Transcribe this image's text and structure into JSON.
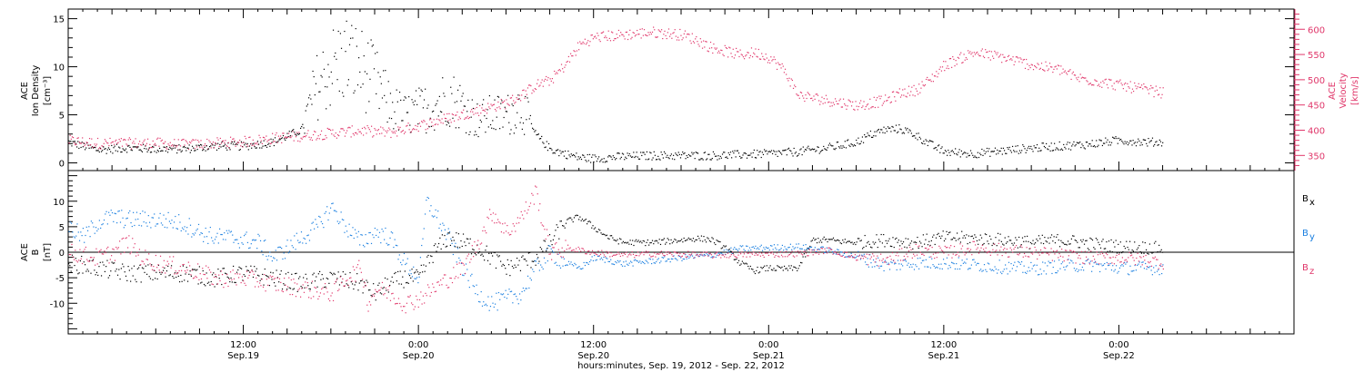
{
  "colors": {
    "black": "#000000",
    "blue": "#1a7fe0",
    "pink": "#e0366a"
  },
  "xaxis": {
    "title": "hours:minutes, Sep. 19, 2012 - Sep. 22, 2012",
    "range_hours": [
      -12,
      72
    ],
    "ticks": [
      {
        "hours": 0,
        "time": "12:00",
        "date": "Sep.19"
      },
      {
        "hours": 12,
        "time": "0:00",
        "date": "Sep.20"
      },
      {
        "hours": 24,
        "time": "12:00",
        "date": "Sep.20"
      },
      {
        "hours": 36,
        "time": "0:00",
        "date": "Sep.21"
      },
      {
        "hours": 48,
        "time": "12:00",
        "date": "Sep.21"
      },
      {
        "hours": 60,
        "time": "0:00",
        "date": "Sep.22"
      }
    ],
    "data_end_hours": 63
  },
  "chart_data": [
    {
      "type": "scatter",
      "panel": "top",
      "ylabel_left": [
        "ACE",
        "Ion Density",
        "[cm⁻³]"
      ],
      "ylabel_right": [
        "ACE",
        "Velocity",
        "[km/s]"
      ],
      "ylim_left": [
        -0.8,
        16
      ],
      "yticks_left": [
        0,
        5,
        10,
        15
      ],
      "ylim_right": [
        320,
        640
      ],
      "yticks_right": [
        350,
        400,
        450,
        500,
        550,
        600
      ],
      "series": [
        {
          "axis": "left",
          "color": "black",
          "points": [
            [
              -12,
              2.2
            ],
            [
              -10,
              1.4
            ],
            [
              -8,
              1.6
            ],
            [
              -6,
              1.5
            ],
            [
              -4,
              1.5
            ],
            [
              -2,
              1.8
            ],
            [
              0,
              1.8
            ],
            [
              2,
              2.2
            ],
            [
              4,
              3.5
            ],
            [
              5,
              8
            ],
            [
              6,
              10
            ],
            [
              7,
              11
            ],
            [
              8,
              10
            ],
            [
              9,
              8.5
            ],
            [
              10,
              6
            ],
            [
              11,
              5
            ],
            [
              12,
              5.5
            ],
            [
              13,
              6
            ],
            [
              14,
              7
            ],
            [
              15,
              6
            ],
            [
              16,
              4.5
            ],
            [
              17,
              5
            ],
            [
              18,
              5
            ],
            [
              19,
              6
            ],
            [
              20,
              3
            ],
            [
              21,
              1.5
            ],
            [
              22,
              1
            ],
            [
              23,
              0.6
            ],
            [
              24,
              0.5
            ],
            [
              26,
              0.7
            ],
            [
              28,
              0.8
            ],
            [
              30,
              0.8
            ],
            [
              32,
              0.8
            ],
            [
              34,
              0.9
            ],
            [
              36,
              1
            ],
            [
              38,
              1.2
            ],
            [
              40,
              1.6
            ],
            [
              42,
              2.2
            ],
            [
              43,
              3
            ],
            [
              44,
              3.5
            ],
            [
              45,
              3.6
            ],
            [
              46,
              3
            ],
            [
              47,
              2
            ],
            [
              48,
              1.2
            ],
            [
              50,
              1
            ],
            [
              52,
              1.3
            ],
            [
              54,
              1.6
            ],
            [
              56,
              1.8
            ],
            [
              58,
              2
            ],
            [
              60,
              2.4
            ],
            [
              62,
              2.2
            ],
            [
              63,
              2.2
            ]
          ]
        },
        {
          "axis": "right",
          "color": "pink",
          "points": [
            [
              -12,
              380
            ],
            [
              -10,
              375
            ],
            [
              -8,
              375
            ],
            [
              -6,
              375
            ],
            [
              -4,
              372
            ],
            [
              -2,
              375
            ],
            [
              0,
              378
            ],
            [
              2,
              385
            ],
            [
              4,
              390
            ],
            [
              6,
              395
            ],
            [
              8,
              400
            ],
            [
              10,
              396
            ],
            [
              12,
              410
            ],
            [
              14,
              425
            ],
            [
              16,
              440
            ],
            [
              18,
              455
            ],
            [
              19,
              470
            ],
            [
              20,
              490
            ],
            [
              21,
              500
            ],
            [
              22,
              530
            ],
            [
              23,
              570
            ],
            [
              24,
              585
            ],
            [
              26,
              590
            ],
            [
              28,
              595
            ],
            [
              30,
              590
            ],
            [
              31,
              580
            ],
            [
              32,
              565
            ],
            [
              34,
              550
            ],
            [
              35,
              555
            ],
            [
              36,
              545
            ],
            [
              37,
              520
            ],
            [
              38,
              470
            ],
            [
              40,
              460
            ],
            [
              42,
              450
            ],
            [
              43,
              455
            ],
            [
              44,
              460
            ],
            [
              45,
              475
            ],
            [
              46,
              480
            ],
            [
              47,
              500
            ],
            [
              48,
              530
            ],
            [
              50,
              555
            ],
            [
              52,
              545
            ],
            [
              54,
              530
            ],
            [
              56,
              520
            ],
            [
              57,
              505
            ],
            [
              58,
              500
            ],
            [
              60,
              490
            ],
            [
              62,
              480
            ],
            [
              63,
              475
            ]
          ]
        }
      ]
    },
    {
      "type": "scatter",
      "panel": "bottom",
      "ylabel_left": [
        "ACE",
        "B",
        "[nT]"
      ],
      "ylim": [
        -16,
        16
      ],
      "yticks": [
        -10,
        -5,
        0,
        5,
        10
      ],
      "legend": [
        {
          "label": "B",
          "sub": "x",
          "color": "black"
        },
        {
          "label": "B",
          "sub": "y",
          "color": "blue"
        },
        {
          "label": "B",
          "sub": "z",
          "color": "pink"
        }
      ],
      "series": [
        {
          "name": "Bx",
          "color": "black",
          "points": [
            [
              -12,
              -2
            ],
            [
              -10,
              -3
            ],
            [
              -8,
              -4
            ],
            [
              -6,
              -4
            ],
            [
              -4,
              -4
            ],
            [
              -2,
              -5
            ],
            [
              0,
              -4
            ],
            [
              2,
              -5
            ],
            [
              4,
              -6
            ],
            [
              6,
              -5
            ],
            [
              8,
              -6
            ],
            [
              9,
              -8
            ],
            [
              10,
              -6
            ],
            [
              11,
              -5
            ],
            [
              12,
              -5
            ],
            [
              13,
              0
            ],
            [
              14,
              3
            ],
            [
              15,
              2
            ],
            [
              16,
              1
            ],
            [
              17,
              -1
            ],
            [
              18,
              -3
            ],
            [
              19,
              -2
            ],
            [
              20,
              -1
            ],
            [
              21,
              2
            ],
            [
              22,
              6
            ],
            [
              23,
              7
            ],
            [
              24,
              5
            ],
            [
              25,
              3
            ],
            [
              26,
              2
            ],
            [
              28,
              2
            ],
            [
              30,
              2.5
            ],
            [
              31,
              2.8
            ],
            [
              32,
              2.6
            ],
            [
              33,
              1
            ],
            [
              34,
              -2
            ],
            [
              35,
              -3.5
            ],
            [
              36,
              -3
            ],
            [
              37,
              -3.2
            ],
            [
              38,
              -3
            ],
            [
              39,
              2.5
            ],
            [
              40,
              2.5
            ],
            [
              41,
              2.2
            ],
            [
              42,
              2
            ],
            [
              44,
              2.5
            ],
            [
              46,
              2
            ],
            [
              48,
              3
            ],
            [
              50,
              2.8
            ],
            [
              52,
              2.5
            ],
            [
              54,
              2
            ],
            [
              56,
              2.5
            ],
            [
              58,
              1.8
            ],
            [
              60,
              1.2
            ],
            [
              62,
              1
            ],
            [
              63,
              0.8
            ]
          ]
        },
        {
          "name": "By",
          "color": "blue",
          "points": [
            [
              -12,
              5
            ],
            [
              -11,
              3
            ],
            [
              -10,
              6
            ],
            [
              -9,
              7
            ],
            [
              -8,
              6.5
            ],
            [
              -6,
              6.5
            ],
            [
              -5,
              6.2
            ],
            [
              -4,
              5.5
            ],
            [
              -3,
              4
            ],
            [
              -2,
              3
            ],
            [
              -1,
              3
            ],
            [
              0,
              2.5
            ],
            [
              1,
              2
            ],
            [
              2,
              -1
            ],
            [
              3,
              1
            ],
            [
              4,
              3
            ],
            [
              5,
              5
            ],
            [
              6,
              9
            ],
            [
              7,
              5
            ],
            [
              8,
              2
            ],
            [
              9,
              4
            ],
            [
              10,
              3
            ],
            [
              11,
              -2
            ],
            [
              12,
              -5
            ],
            [
              12.5,
              10
            ],
            [
              13,
              8
            ],
            [
              14,
              3
            ],
            [
              15,
              -3
            ],
            [
              16,
              -8
            ],
            [
              17,
              -10
            ],
            [
              18,
              -9
            ],
            [
              19,
              -8
            ],
            [
              20,
              -3
            ],
            [
              21,
              0
            ],
            [
              22,
              -2
            ],
            [
              23,
              -3
            ],
            [
              24,
              -1
            ],
            [
              25,
              -1.5
            ],
            [
              26,
              -2.2
            ],
            [
              28,
              -1.6
            ],
            [
              30,
              -1
            ],
            [
              32,
              -0.5
            ],
            [
              34,
              0.8
            ],
            [
              36,
              1
            ],
            [
              38,
              1.2
            ],
            [
              40,
              0.5
            ],
            [
              42,
              -0.8
            ],
            [
              44,
              -2.5
            ],
            [
              46,
              -2
            ],
            [
              48,
              -2
            ],
            [
              50,
              -2.4
            ],
            [
              52,
              -2.8
            ],
            [
              54,
              -3.2
            ],
            [
              56,
              -2.6
            ],
            [
              58,
              -2.4
            ],
            [
              60,
              -3
            ],
            [
              62,
              -3
            ],
            [
              63,
              -3
            ]
          ]
        },
        {
          "name": "Bz",
          "color": "pink",
          "points": [
            [
              -12,
              0
            ],
            [
              -10,
              -1
            ],
            [
              -9,
              0
            ],
            [
              -8,
              2
            ],
            [
              -7,
              -1
            ],
            [
              -6,
              -2
            ],
            [
              -4,
              -3
            ],
            [
              -2,
              -5
            ],
            [
              0,
              -5
            ],
            [
              2,
              -6
            ],
            [
              4,
              -7
            ],
            [
              5,
              -7.5
            ],
            [
              6,
              -8
            ],
            [
              7,
              -5
            ],
            [
              8,
              -3
            ],
            [
              8.5,
              -10
            ],
            [
              9,
              -7
            ],
            [
              10,
              -8
            ],
            [
              11,
              -10
            ],
            [
              12,
              -9
            ],
            [
              13,
              -7
            ],
            [
              14,
              -5
            ],
            [
              15,
              -3
            ],
            [
              16,
              2
            ],
            [
              17,
              8
            ],
            [
              18,
              4
            ],
            [
              19,
              7
            ],
            [
              20,
              12
            ],
            [
              20.5,
              5
            ],
            [
              21,
              0
            ],
            [
              22,
              1
            ],
            [
              24,
              0
            ],
            [
              26,
              -0.5
            ],
            [
              28,
              -0.2
            ],
            [
              30,
              -0.3
            ],
            [
              32,
              -0.5
            ],
            [
              34,
              -0.4
            ],
            [
              36,
              -0.3
            ],
            [
              38,
              -0.2
            ],
            [
              40,
              0.5
            ],
            [
              42,
              -1
            ],
            [
              44,
              -1.5
            ],
            [
              46,
              0.5
            ],
            [
              48,
              0
            ],
            [
              50,
              1
            ],
            [
              52,
              0.5
            ],
            [
              54,
              0
            ],
            [
              56,
              -0.5
            ],
            [
              58,
              -1
            ],
            [
              60,
              -1
            ],
            [
              62,
              -1.5
            ],
            [
              63,
              -2
            ]
          ]
        }
      ]
    }
  ]
}
